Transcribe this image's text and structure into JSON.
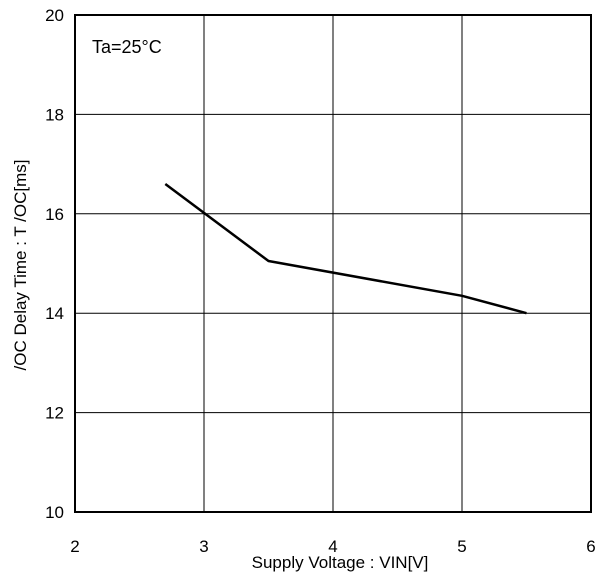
{
  "chart_data": {
    "type": "line",
    "title": "",
    "xlabel": "Supply Voltage : VIN[V]",
    "ylabel": "/OC Delay Time : T  /OC[ms]",
    "xlim": [
      2,
      6
    ],
    "ylim": [
      10,
      20
    ],
    "x_ticks": [
      "2",
      "3",
      "4",
      "5",
      "6"
    ],
    "y_ticks": [
      "10",
      "12",
      "14",
      "16",
      "18",
      "20"
    ],
    "grid": true,
    "annotation": "Ta=25°C",
    "series": [
      {
        "x": [
          2.7,
          3.5,
          5.0,
          5.5
        ],
        "y": [
          16.6,
          15.05,
          14.35,
          14.0
        ]
      }
    ],
    "colors": {
      "line": "#000000",
      "grid": "#000000",
      "frame": "#000000"
    }
  }
}
